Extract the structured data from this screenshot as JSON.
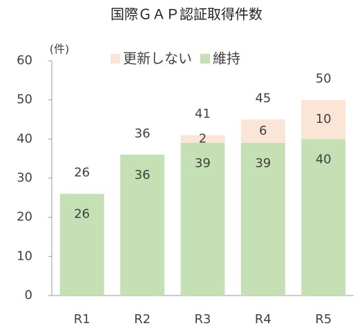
{
  "chart_data": {
    "type": "stacked_bar",
    "title": "国際ＧＡＰ認証取得件数",
    "y_axis_label": "(件)",
    "categories": [
      "R1",
      "R2",
      "R3",
      "R4",
      "R5"
    ],
    "series": [
      {
        "name": "維持",
        "color": "#c5e0b4",
        "values": [
          26,
          36,
          39,
          39,
          40
        ]
      },
      {
        "name": "更新しない",
        "color": "#fbe5d6",
        "values": [
          null,
          null,
          2,
          6,
          10
        ]
      }
    ],
    "totals": [
      26,
      36,
      41,
      45,
      50
    ],
    "ylim": [
      0,
      60
    ],
    "yticks": [
      0,
      10,
      20,
      30,
      40,
      50,
      60
    ],
    "grid": false,
    "legend": "top"
  }
}
